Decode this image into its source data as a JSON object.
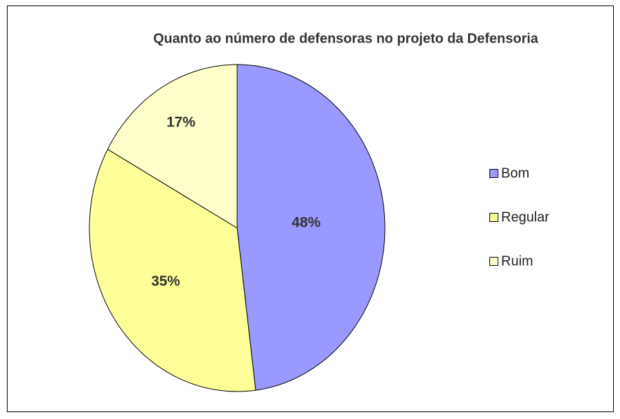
{
  "chart_data": {
    "type": "pie",
    "title": "Quanto ao número de defensoras no projeto da Defensoria",
    "categories": [
      "Bom",
      "Regular",
      "Ruim"
    ],
    "values": [
      48,
      35,
      17
    ],
    "value_labels": [
      "48%",
      "35%",
      "17%"
    ],
    "colors": [
      "#9999ff",
      "#ffff99",
      "#ffffcc"
    ],
    "legend": "right"
  }
}
